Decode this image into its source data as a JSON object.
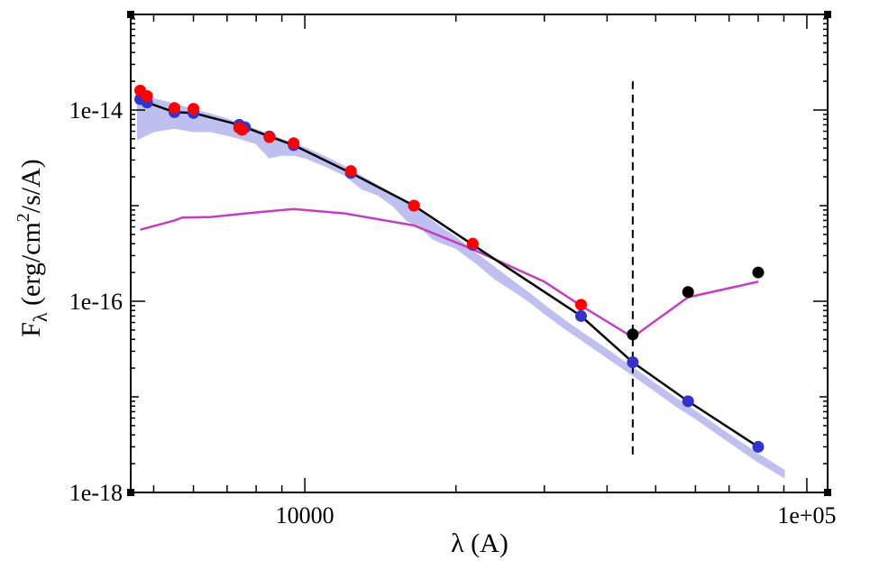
{
  "chart_data": {
    "type": "scatter",
    "title": "",
    "xlabel": "λ (A)",
    "ylabel": "Fλ (erg/cm2/s/A)",
    "ylabel_parts": {
      "main": "F",
      "sub": "λ",
      "unit_open": " (erg/cm",
      "sup": "2",
      "unit_close": "/s/A)"
    },
    "xscale": "log",
    "yscale": "log",
    "xlim": [
      4500,
      110000
    ],
    "ylim": [
      1e-18,
      1e-13
    ],
    "x_ticks": [
      {
        "value": 10000,
        "label": "10000"
      },
      {
        "value": 100000,
        "label": "1e+05"
      }
    ],
    "y_ticks": [
      {
        "value": 1e-14,
        "label": "1e-14"
      },
      {
        "value": 1e-16,
        "label": "1e-16"
      },
      {
        "value": 1e-18,
        "label": "1e-18"
      }
    ],
    "grid": false,
    "legend": "none",
    "colors": {
      "model_spectrum": "#c0c0f0",
      "model_photometry": "#3333cc",
      "observed": "#ff0000",
      "excess": "#000000",
      "excess_line": "#c040c0",
      "fit_line": "#000000",
      "divider": "#000000"
    },
    "series": [
      {
        "name": "model spectrum",
        "kind": "area",
        "x": [
          4650,
          5000,
          5500,
          6000,
          6500,
          7000,
          7500,
          8000,
          8500,
          9000,
          9500,
          10000,
          11000,
          12000,
          13000,
          14000,
          15000,
          16000,
          17000,
          18000,
          19000,
          20000,
          22000,
          24000,
          26000,
          28000,
          30000,
          33000,
          36000,
          40000,
          45000,
          50000,
          55000,
          60000,
          70000,
          80000,
          90000
        ],
        "values": [
          1.4e-14,
          1.3e-14,
          1.15e-14,
          1e-14,
          9e-15,
          8e-15,
          7e-15,
          6.2e-15,
          5.5e-15,
          4.9e-15,
          4.4e-15,
          4e-15,
          3.2e-15,
          2.55e-15,
          2e-15,
          1.6e-15,
          1.3e-15,
          1.05e-15,
          8.5e-16,
          6.8e-16,
          5.5e-16,
          4.6e-16,
          3.1e-16,
          2.2e-16,
          1.6e-16,
          1.2e-16,
          9e-17,
          6.2e-17,
          4.5e-17,
          3.1e-17,
          2e-17,
          1.35e-17,
          9.5e-18,
          7e-18,
          4e-18,
          2.5e-18,
          1.7e-18
        ],
        "lower": [
          5e-15,
          6e-15,
          6.5e-15,
          6e-15,
          6e-15,
          5.5e-15,
          5e-15,
          4.5e-15,
          3.2e-15,
          3.4e-15,
          3.4e-15,
          3.2e-15,
          2.6e-15,
          2.1e-15,
          1.5e-15,
          1.3e-15,
          1e-15,
          7e-16,
          6e-16,
          4.5e-16,
          4e-16,
          3.6e-16,
          2.5e-16,
          1.7e-16,
          1.3e-16,
          1e-16,
          7.5e-17,
          5.2e-17,
          3.8e-17,
          2.6e-17,
          1.7e-17,
          1.15e-17,
          8e-18,
          6e-18,
          3.4e-18,
          2.1e-18,
          1.45e-18
        ]
      },
      {
        "name": "model photometry fit",
        "kind": "line+markers",
        "x": [
          4700,
          4850,
          5500,
          6000,
          7400,
          7600,
          8500,
          9500,
          12350,
          16500,
          21600,
          35500,
          45000,
          58000,
          80000
        ],
        "values": [
          1.3e-14,
          1.2e-14,
          9.5e-15,
          9.3e-15,
          7e-15,
          6.6e-15,
          5.3e-15,
          4.3e-15,
          2.2e-15,
          1e-15,
          3.9e-16,
          7e-17,
          2.3e-17,
          9e-18,
          3e-18
        ]
      },
      {
        "name": "observed photometry",
        "kind": "markers",
        "x": [
          4700,
          4850,
          5500,
          6000,
          7400,
          7500,
          8500,
          9500,
          12350,
          16500,
          21600,
          35500
        ],
        "values": [
          1.6e-14,
          1.4e-14,
          1.05e-14,
          1.03e-14,
          6.5e-15,
          6.2e-15,
          5.2e-15,
          4.5e-15,
          2.3e-15,
          1e-15,
          4e-16,
          9.2e-17
        ]
      },
      {
        "name": "infrared excess photometry",
        "kind": "markers",
        "x": [
          45000,
          58000,
          80000
        ],
        "values": [
          4.5e-17,
          1.25e-16,
          2e-16
        ]
      },
      {
        "name": "excess model",
        "kind": "line",
        "x": [
          4700,
          5500,
          5700,
          6500,
          8000,
          9500,
          12000,
          16500,
          21600,
          30000,
          35500,
          45000,
          58000,
          80000
        ],
        "values": [
          5.6e-16,
          7e-16,
          7.5e-16,
          7.6e-16,
          8.5e-16,
          9.2e-16,
          8.3e-16,
          6.2e-16,
          3.5e-16,
          1.6e-16,
          9e-17,
          4.2e-17,
          1.1e-16,
          1.6e-16
        ]
      },
      {
        "name": "divider",
        "kind": "vline-dashed",
        "x": [
          45000,
          45000
        ],
        "values": [
          2.5e-18,
          2e-14
        ]
      }
    ]
  }
}
